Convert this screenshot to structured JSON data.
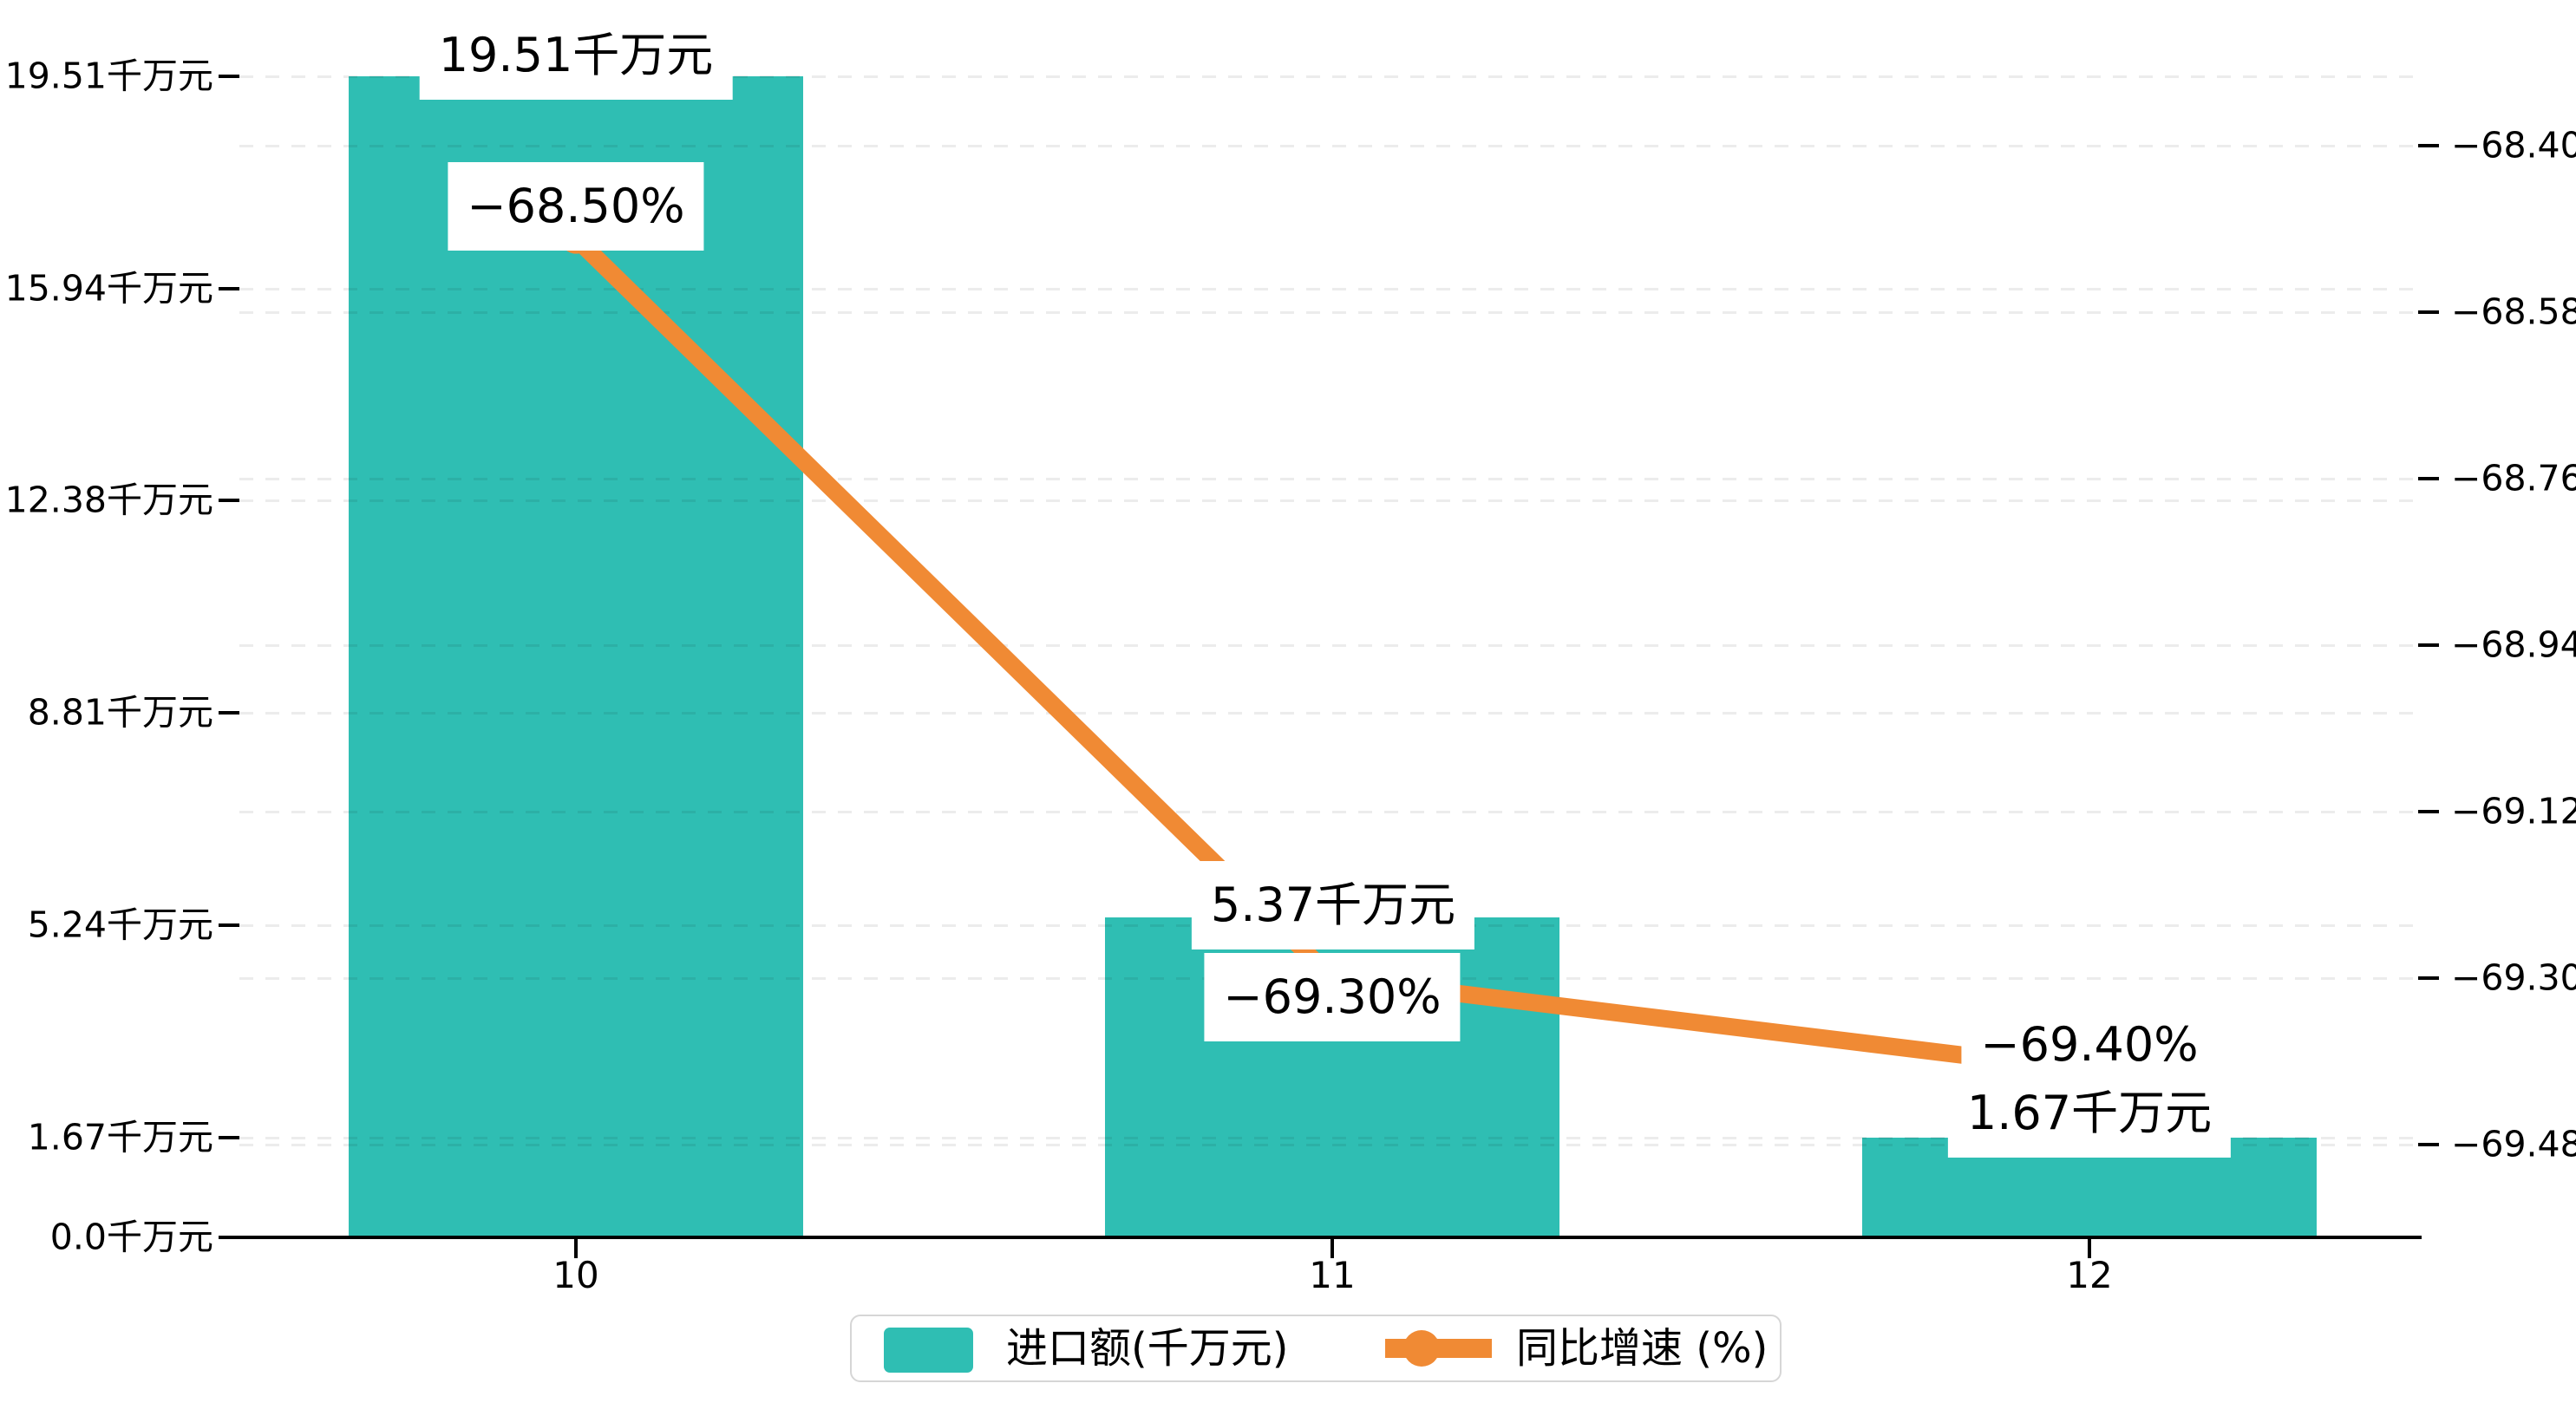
{
  "chart_data": {
    "type": "bar",
    "subtype": "bar+line dual axis",
    "title": "",
    "categories": [
      "10",
      "11",
      "12"
    ],
    "series": [
      {
        "name": "进口额(千万元)",
        "type": "bar",
        "axis": "left",
        "color": "#2FBEB3",
        "values": [
          19.51,
          5.37,
          1.67
        ],
        "data_labels": [
          "19.51千万元",
          "5.37千万元",
          "1.67千万元"
        ]
      },
      {
        "name": "同比增速 (%)",
        "type": "line",
        "axis": "right",
        "color": "#F08A34",
        "values": [
          -68.5,
          -69.3,
          -69.4
        ],
        "data_labels": [
          "−68.50%",
          "−69.30%",
          "−69.40%"
        ]
      }
    ],
    "left_axis": {
      "range": [
        0,
        19.51
      ],
      "ticks": [
        {
          "value": 19.51,
          "label": "19.51千万元"
        },
        {
          "value": 15.94,
          "label": "15.94千万元"
        },
        {
          "value": 12.38,
          "label": "12.38千万元"
        },
        {
          "value": 8.81,
          "label": "8.81千万元"
        },
        {
          "value": 5.24,
          "label": "5.24千万元"
        },
        {
          "value": 1.67,
          "label": "1.67千万元"
        },
        {
          "value": 0.0,
          "label": "0.0千万元"
        }
      ]
    },
    "right_axis": {
      "range": [
        -69.48,
        -68.4
      ],
      "ticks": [
        {
          "value": -68.4,
          "label": "−68.40"
        },
        {
          "value": -68.58,
          "label": "−68.58"
        },
        {
          "value": -68.76,
          "label": "−68.76"
        },
        {
          "value": -68.94,
          "label": "−68.94"
        },
        {
          "value": -69.12,
          "label": "−69.12"
        },
        {
          "value": -69.3,
          "label": "−69.30"
        },
        {
          "value": -69.48,
          "label": "−69.48"
        }
      ]
    },
    "legend": {
      "position": "bottom",
      "items": [
        "进口额(千万元)",
        "同比增速 (%)"
      ]
    },
    "grid": "dashed horizontal gridlines for both axes",
    "colors": {
      "bar": "#2FBEB3",
      "line": "#F08A34",
      "axis": "#000000",
      "gridline": "#ececec",
      "label_background": "#ffffff",
      "legend_border": "#d6d6d6",
      "background": "#ffffff"
    }
  }
}
